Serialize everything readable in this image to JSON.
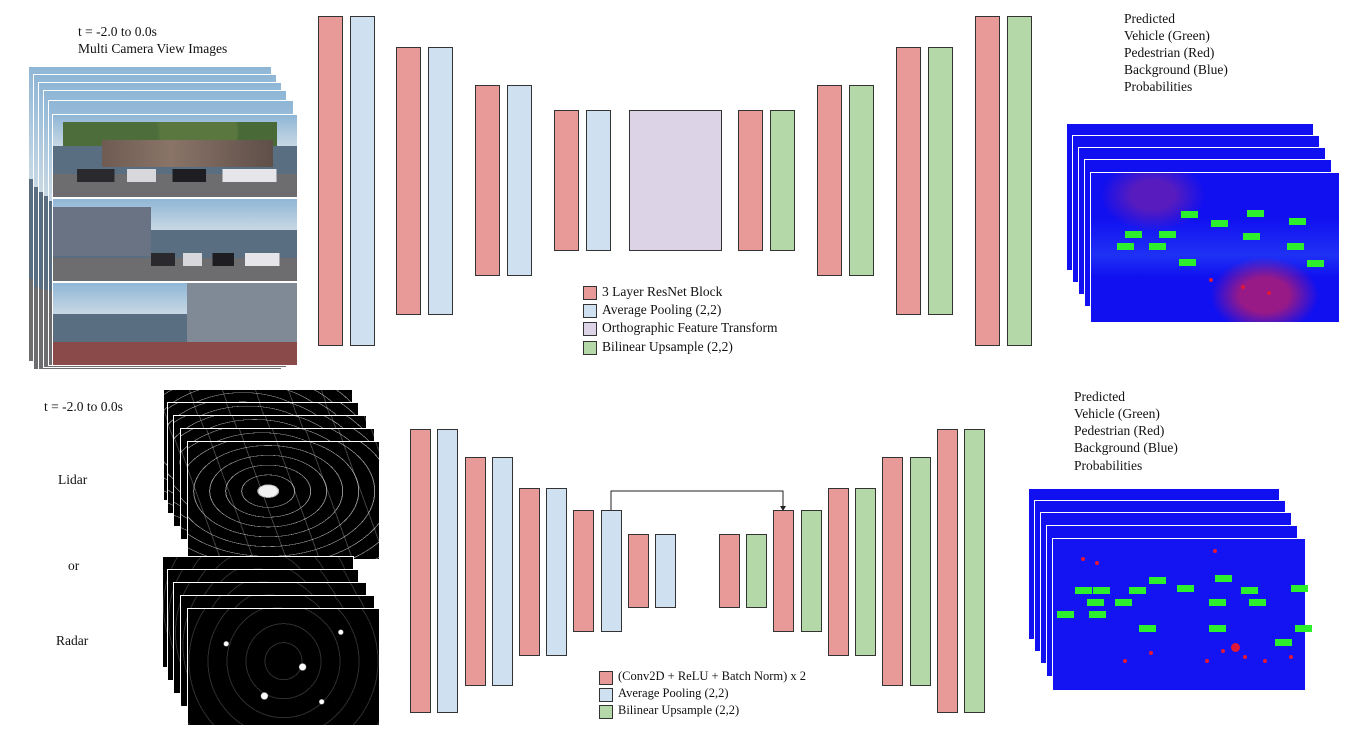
{
  "top": {
    "time_label": "t = -2.0 to 0.0s",
    "input_label": "Multi Camera View Images",
    "prediction_lines": [
      "Predicted",
      "Vehicle (Green)",
      "Pedestrian (Red)",
      "Background  (Blue)",
      "Probabilities"
    ],
    "legend": [
      {
        "label": "3 Layer ResNet Block",
        "color": "#e89a98"
      },
      {
        "label": "Average Pooling (2,2)",
        "color": "#cfe0f1"
      },
      {
        "label": "Orthographic Feature Transform",
        "color": "#dcd3e7"
      },
      {
        "label": "Bilinear Upsample (2,2)",
        "color": "#b4d8a8"
      }
    ]
  },
  "bottom": {
    "time_label": "t = -2.0 to 0.0s",
    "lidar_label": "Lidar",
    "or_label": "or",
    "radar_label": "Radar",
    "prediction_lines": [
      "Predicted",
      "Vehicle (Green)",
      "Pedestrian (Red)",
      "Background  (Blue)",
      "Probabilities"
    ],
    "legend": [
      {
        "label": "(Conv2D + ReLU + Batch Norm) x 2",
        "color": "#e89a98"
      },
      {
        "label": "Average Pooling (2,2)",
        "color": "#cfe0f1"
      },
      {
        "label": "Bilinear Upsample (2,2)",
        "color": "#b4d8a8"
      }
    ]
  }
}
